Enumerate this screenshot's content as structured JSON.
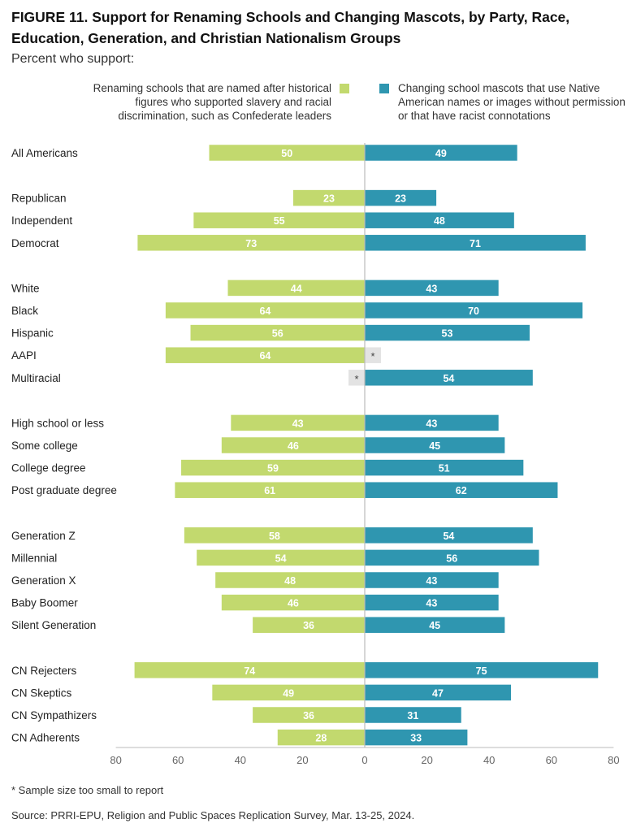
{
  "title": "FIGURE 11.  Support for Renaming Schools and Changing Mascots, by Party, Race, Education, Generation, and Christian Nationalism Groups",
  "subtitle": "Percent who support:",
  "footnote": "* Sample size too small to report",
  "source": "Source: PRRI-EPU, Religion and Public Spaces Replication Survey, Mar. 13-25, 2024.",
  "colors": {
    "renaming": "#c2d96e",
    "mascots": "#2f96b0",
    "na_box": "#e3e3e3",
    "axis": "#bbbbbb"
  },
  "chart_data": {
    "type": "bar",
    "orientation": "horizontal-diverging",
    "xlim": [
      -80,
      80
    ],
    "xticks": [
      "80",
      "60",
      "40",
      "20",
      "0",
      "20",
      "40",
      "60",
      "80"
    ],
    "na_marker": "*",
    "series": [
      {
        "name": "Renaming schools that are named after historical figures who supported slavery and racial discrimination, such as Confederate leaders",
        "side": "left"
      },
      {
        "name": "Changing school mascots that use Native American names or images without permission or that have racist connotations",
        "side": "right"
      }
    ],
    "groups": [
      [
        {
          "label": "All Americans",
          "renaming": 50,
          "mascots": 49
        }
      ],
      [
        {
          "label": "Republican",
          "renaming": 23,
          "mascots": 23
        },
        {
          "label": "Independent",
          "renaming": 55,
          "mascots": 48
        },
        {
          "label": "Democrat",
          "renaming": 73,
          "mascots": 71
        }
      ],
      [
        {
          "label": "White",
          "renaming": 44,
          "mascots": 43
        },
        {
          "label": "Black",
          "renaming": 64,
          "mascots": 70
        },
        {
          "label": "Hispanic",
          "renaming": 56,
          "mascots": 53
        },
        {
          "label": "AAPI",
          "renaming": 64,
          "mascots": null
        },
        {
          "label": "Multiracial",
          "renaming": null,
          "mascots": 54
        }
      ],
      [
        {
          "label": "High school or less",
          "renaming": 43,
          "mascots": 43
        },
        {
          "label": "Some college",
          "renaming": 46,
          "mascots": 45
        },
        {
          "label": "College degree",
          "renaming": 59,
          "mascots": 51
        },
        {
          "label": "Post graduate degree",
          "renaming": 61,
          "mascots": 62
        }
      ],
      [
        {
          "label": "Generation Z",
          "renaming": 58,
          "mascots": 54
        },
        {
          "label": "Millennial",
          "renaming": 54,
          "mascots": 56
        },
        {
          "label": "Generation X",
          "renaming": 48,
          "mascots": 43
        },
        {
          "label": "Baby Boomer",
          "renaming": 46,
          "mascots": 43
        },
        {
          "label": "Silent Generation",
          "renaming": 36,
          "mascots": 45
        }
      ],
      [
        {
          "label": "CN Rejecters",
          "renaming": 74,
          "mascots": 75
        },
        {
          "label": "CN Skeptics",
          "renaming": 49,
          "mascots": 47
        },
        {
          "label": "CN Sympathizers",
          "renaming": 36,
          "mascots": 31
        },
        {
          "label": "CN Adherents",
          "renaming": 28,
          "mascots": 33
        }
      ]
    ]
  }
}
